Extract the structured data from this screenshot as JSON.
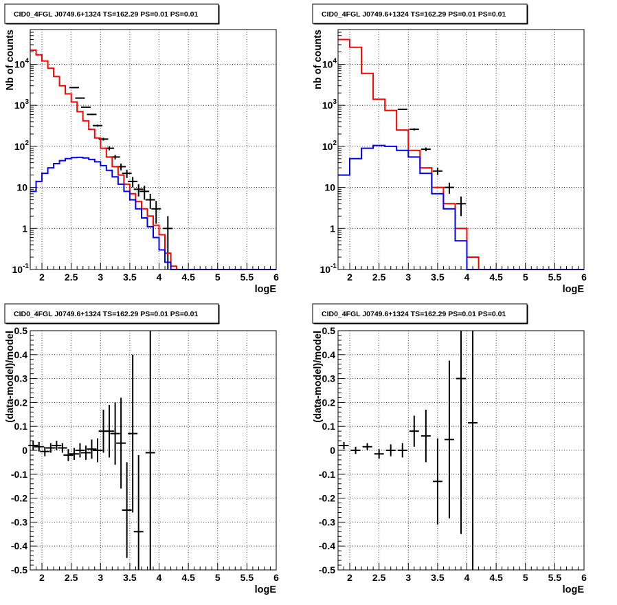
{
  "panel_title": "CID0_4FGL J0749.6+1324 TS=162.29 PS=0.01 PS=0.01",
  "colors": {
    "data": "#000000",
    "total_model": "#ff0000",
    "component": "#0000ff"
  },
  "chart_data": [
    {
      "type": "line",
      "title": "CID0_4FGL J0749.6+1324 TS=162.29 PS=0.01 PS=0.01",
      "xlabel": "logE",
      "ylabel": "Nb of counts",
      "xlim": [
        1.8,
        6
      ],
      "ylim": [
        0.1,
        70000
      ],
      "yscale": "log",
      "grid": true,
      "xticks": [
        "2",
        "2.5",
        "3",
        "3.5",
        "4",
        "4.5",
        "5",
        "5.5",
        "6"
      ],
      "yticks": [
        "10^-1",
        "1",
        "10",
        "10^2",
        "10^3",
        "10^4"
      ],
      "bin_edges": [
        1.8,
        1.9,
        2.0,
        2.1,
        2.2,
        2.3,
        2.4,
        2.5,
        2.6,
        2.7,
        2.8,
        2.9,
        3.0,
        3.1,
        3.2,
        3.3,
        3.4,
        3.5,
        3.6,
        3.7,
        3.8,
        3.9,
        4.0,
        4.1,
        4.2,
        4.3,
        4.4,
        4.5,
        4.6,
        4.7,
        4.8,
        4.9,
        5.0,
        5.1,
        5.2,
        5.3,
        5.4,
        5.5,
        5.6,
        5.7,
        5.8,
        5.9,
        6.0
      ],
      "series": [
        {
          "style": "data",
          "x": [
            2.55,
            2.65,
            2.75,
            2.85,
            2.95,
            3.05,
            3.15,
            3.25,
            3.35,
            3.45,
            3.55,
            3.65,
            3.75,
            3.85,
            3.95,
            4.15
          ],
          "y": [
            2700,
            1500,
            900,
            600,
            320,
            150,
            90,
            55,
            32,
            22,
            14,
            9,
            8,
            5,
            3,
            1
          ],
          "yerr": [
            60,
            40,
            30,
            25,
            18,
            12,
            10,
            7,
            6,
            5,
            4,
            3,
            3,
            2,
            1.7,
            1
          ]
        },
        {
          "style": "total_model",
          "values": [
            22000,
            17000,
            12000,
            8000,
            5000,
            3000,
            1900,
            1200,
            700,
            420,
            260,
            160,
            90,
            55,
            32,
            20,
            12,
            7,
            4.5,
            3,
            2,
            1.2,
            0.7,
            0.25,
            0.12,
            0.1,
            0.1,
            0.1,
            0.1,
            0.1,
            0.1,
            0.1,
            0.1,
            0.1,
            0.1,
            0.1,
            0.1,
            0.1,
            0.1,
            0.1,
            0.1,
            0.1
          ]
        },
        {
          "style": "component",
          "values": [
            8,
            14,
            22,
            30,
            38,
            45,
            50,
            53,
            54,
            52,
            48,
            42,
            34,
            26,
            18,
            12,
            8,
            5,
            3,
            1.8,
            1.1,
            0.6,
            0.3,
            0.15,
            0.1,
            0.1,
            0.1,
            0.1,
            0.1,
            0.1,
            0.1,
            0.1,
            0.1,
            0.1,
            0.1,
            0.1,
            0.1,
            0.1,
            0.1,
            0.1,
            0.1,
            0.1
          ]
        }
      ]
    },
    {
      "type": "line",
      "title": "CID0_4FGL J0749.6+1324 TS=162.29 PS=0.01 PS=0.01",
      "xlabel": "logE",
      "ylabel": "nb of counts",
      "xlim": [
        1.8,
        6
      ],
      "ylim": [
        0.1,
        70000
      ],
      "yscale": "log",
      "grid": true,
      "xticks": [
        "2",
        "2.5",
        "3",
        "3.5",
        "4",
        "4.5",
        "5",
        "5.5",
        "6"
      ],
      "yticks": [
        "10^-1",
        "1",
        "10",
        "10^2",
        "10^3",
        "10^4"
      ],
      "bin_edges": [
        1.8,
        2.0,
        2.2,
        2.4,
        2.6,
        2.8,
        3.0,
        3.2,
        3.4,
        3.6,
        3.8,
        4.0,
        4.2,
        4.4,
        4.6,
        4.8,
        5.0,
        5.2,
        5.4,
        5.6,
        5.8,
        6.0
      ],
      "series": [
        {
          "style": "data",
          "x": [
            2.9,
            3.1,
            3.3,
            3.5,
            3.7,
            3.9
          ],
          "y": [
            800,
            260,
            85,
            25,
            10,
            4
          ],
          "yerr": [
            30,
            16,
            9,
            5,
            3,
            2
          ]
        },
        {
          "style": "total_model",
          "values": [
            40000,
            26000,
            6000,
            1400,
            750,
            250,
            80,
            30,
            10,
            4,
            1,
            0.2,
            0.1,
            0.1,
            0.1,
            0.1,
            0.1,
            0.1,
            0.1,
            0.1,
            0.1
          ]
        },
        {
          "style": "component",
          "values": [
            20,
            50,
            90,
            105,
            100,
            80,
            55,
            22,
            7,
            3,
            0.5,
            0.1,
            0.1,
            0.1,
            0.1,
            0.1,
            0.1,
            0.1,
            0.1,
            0.1,
            0.1
          ]
        }
      ]
    },
    {
      "type": "scatter",
      "title": "CID0_4FGL J0749.6+1324 TS=162.29 PS=0.01 PS=0.01",
      "xlabel": "logE",
      "ylabel": "(data-model)/model",
      "xlim": [
        1.8,
        6
      ],
      "ylim": [
        -0.5,
        0.5
      ],
      "grid": true,
      "xticks": [
        "2",
        "2.5",
        "3",
        "3.5",
        "4",
        "4.5",
        "5",
        "5.5",
        "6"
      ],
      "yticks": [
        "-0.5",
        "-0.4",
        "-0.3",
        "-0.2",
        "-0.1",
        "0",
        "0.1",
        "0.2",
        "0.3",
        "0.4",
        "0.5"
      ],
      "series": [
        {
          "style": "data",
          "x": [
            1.85,
            1.95,
            2.05,
            2.15,
            2.25,
            2.35,
            2.45,
            2.55,
            2.65,
            2.75,
            2.85,
            2.95,
            3.05,
            3.15,
            3.25,
            3.35,
            3.45,
            3.55,
            3.65,
            3.85
          ],
          "y": [
            0.02,
            0.015,
            -0.005,
            0.01,
            0.02,
            0.01,
            -0.02,
            -0.015,
            0.0,
            -0.01,
            0.005,
            0.0,
            0.08,
            0.08,
            0.07,
            0.03,
            -0.25,
            0.07,
            -0.34,
            -0.01
          ],
          "yerr": [
            0.02,
            0.02,
            0.02,
            0.02,
            0.02,
            0.02,
            0.025,
            0.025,
            0.03,
            0.03,
            0.04,
            0.05,
            0.09,
            0.11,
            0.13,
            0.19,
            0.2,
            0.33,
            0.32,
            0.6
          ]
        }
      ]
    },
    {
      "type": "scatter",
      "title": "CID0_4FGL J0749.6+1324 TS=162.29 PS=0.01 PS=0.01",
      "xlabel": "logE",
      "ylabel": "(data-model)/model",
      "xlim": [
        1.8,
        6
      ],
      "ylim": [
        -0.5,
        0.5
      ],
      "grid": true,
      "xticks": [
        "2",
        "2.5",
        "3",
        "3.5",
        "4",
        "4.5",
        "5",
        "5.5",
        "6"
      ],
      "yticks": [
        "-0.5",
        "-0.4",
        "-0.3",
        "-0.2",
        "-0.1",
        "0",
        "0.1",
        "0.2",
        "0.3",
        "0.4",
        "0.5"
      ],
      "series": [
        {
          "style": "data",
          "x": [
            1.9,
            2.1,
            2.3,
            2.5,
            2.7,
            2.9,
            3.1,
            3.3,
            3.5,
            3.7,
            3.9,
            4.1
          ],
          "y": [
            0.02,
            0.0,
            0.015,
            -0.015,
            0.0,
            0.0,
            0.08,
            0.06,
            -0.13,
            0.045,
            0.3,
            0.115
          ],
          "yerr": [
            0.015,
            0.015,
            0.015,
            0.02,
            0.025,
            0.03,
            0.065,
            0.11,
            0.18,
            0.33,
            0.65,
            0.8
          ]
        }
      ]
    }
  ]
}
